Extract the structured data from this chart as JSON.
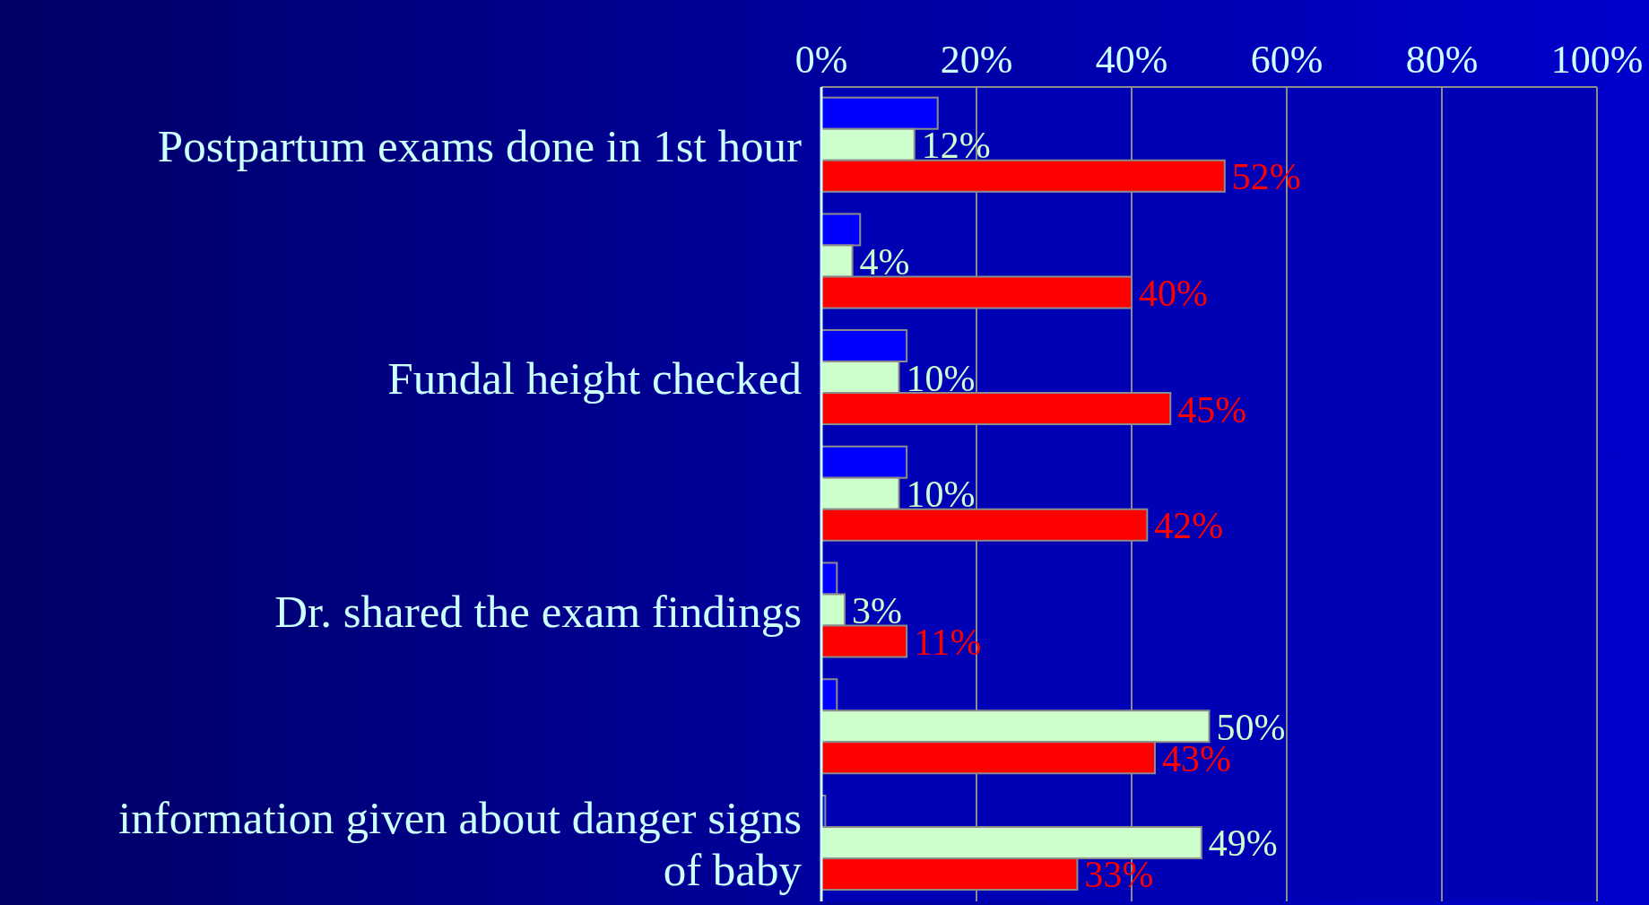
{
  "chart_data": {
    "type": "bar",
    "orientation": "horizontal",
    "categories": [
      "Postpartum exams done in 1st hour",
      null,
      "Fundal height checked",
      null,
      "Dr. shared the exam findings",
      null,
      "information given about danger signs of baby"
    ],
    "series": [
      {
        "color": "#0000ff",
        "values": [
          15,
          5,
          11,
          11,
          2,
          2,
          0.5
        ]
      },
      {
        "color": "#ccffcc",
        "values": [
          12,
          4,
          10,
          10,
          3,
          50,
          49
        ],
        "value_labels": [
          "12%",
          "4%",
          "10%",
          "10%",
          "3%",
          "50%",
          "49%"
        ]
      },
      {
        "color": "#ff0000",
        "values": [
          52,
          40,
          45,
          42,
          11,
          43,
          33
        ],
        "value_labels": [
          "52%",
          "40%",
          "45%",
          "42%",
          "11%",
          "43%",
          "33%"
        ]
      }
    ],
    "xlim": [
      0,
      100
    ],
    "xticks": [
      {
        "value": 0,
        "label": "0%"
      },
      {
        "value": 20,
        "label": "20%"
      },
      {
        "value": 40,
        "label": "40%"
      },
      {
        "value": 60,
        "label": "60%"
      },
      {
        "value": 80,
        "label": "80%"
      },
      {
        "value": 100,
        "label": "100%"
      }
    ],
    "grid": "x"
  }
}
